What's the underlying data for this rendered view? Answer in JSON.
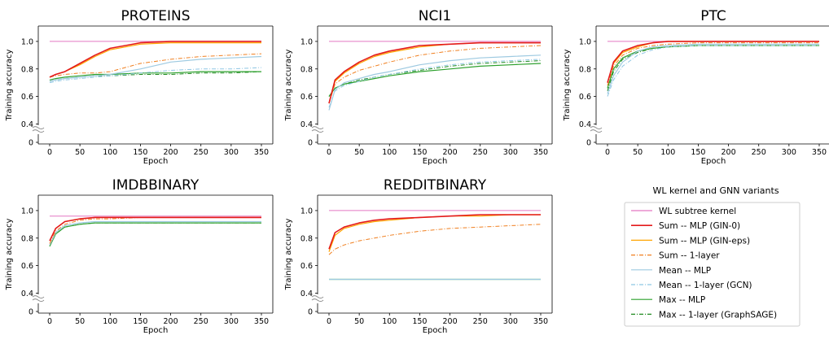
{
  "legend": {
    "title": "WL kernel and GNN variants",
    "entries": [
      {
        "key": "wl",
        "label": "WL subtree kernel",
        "color": "#e377c2",
        "dash": "solid",
        "width": 1
      },
      {
        "key": "sum_mlp",
        "label": "Sum -- MLP (GIN-0)",
        "color": "#e31a1c",
        "dash": "solid",
        "width": 1.6
      },
      {
        "key": "sum_eps",
        "label": "Sum -- MLP (GIN-eps)",
        "color": "#ffa500",
        "dash": "solid",
        "width": 1.2
      },
      {
        "key": "sum_1l",
        "label": "Sum -- 1-layer",
        "color": "#f07f1f",
        "dash": "dashdot",
        "width": 1
      },
      {
        "key": "mean_mlp",
        "label": "Mean -- MLP",
        "color": "#9ecae1",
        "dash": "solid",
        "width": 1.2
      },
      {
        "key": "mean_1l",
        "label": "Mean -- 1-layer (GCN)",
        "color": "#8ec6e3",
        "dash": "dashdot",
        "width": 1
      },
      {
        "key": "max_mlp",
        "label": "Max -- MLP",
        "color": "#2ca02c",
        "dash": "solid",
        "width": 1.2
      },
      {
        "key": "max_1l",
        "label": "Max -- 1-layer (GraphSAGE)",
        "color": "#208a20",
        "dash": "dashdot",
        "width": 1
      }
    ]
  },
  "chart_data": [
    {
      "type": "line",
      "title": "PROTEINS",
      "xlabel": "Epoch",
      "ylabel": "Training accuracy",
      "xlim": [
        0,
        350
      ],
      "ylim": [
        0,
        1.1
      ],
      "y_axis_break": "between 0 and 0.4",
      "xticks": [
        0,
        50,
        100,
        150,
        200,
        250,
        300,
        350
      ],
      "yticks": [
        0,
        0.4,
        0.6,
        0.8,
        1.0
      ],
      "x": [
        0,
        10,
        25,
        50,
        75,
        100,
        150,
        200,
        250,
        300,
        350
      ],
      "series": [
        {
          "name": "WL subtree kernel",
          "key": "wl",
          "values": [
            1.0,
            1.0,
            1.0,
            1.0,
            1.0,
            1.0,
            1.0,
            1.0,
            1.0,
            1.0,
            1.0
          ]
        },
        {
          "name": "Sum -- MLP (GIN-0)",
          "key": "sum_mlp",
          "values": [
            0.74,
            0.76,
            0.78,
            0.84,
            0.9,
            0.95,
            0.99,
            1.0,
            1.0,
            1.0,
            1.0
          ]
        },
        {
          "name": "Sum -- MLP (GIN-eps)",
          "key": "sum_eps",
          "values": [
            0.74,
            0.76,
            0.78,
            0.83,
            0.89,
            0.94,
            0.98,
            0.99,
            0.99,
            0.99,
            0.99
          ]
        },
        {
          "name": "Sum -- 1-layer",
          "key": "sum_1l",
          "values": [
            0.74,
            0.75,
            0.76,
            0.77,
            0.77,
            0.78,
            0.84,
            0.87,
            0.89,
            0.9,
            0.91
          ]
        },
        {
          "name": "Mean -- MLP",
          "key": "mean_mlp",
          "values": [
            0.71,
            0.72,
            0.73,
            0.74,
            0.75,
            0.76,
            0.8,
            0.85,
            0.87,
            0.88,
            0.89
          ]
        },
        {
          "name": "Mean -- 1-layer (GCN)",
          "key": "mean_1l",
          "values": [
            0.7,
            0.71,
            0.72,
            0.73,
            0.74,
            0.75,
            0.77,
            0.79,
            0.8,
            0.8,
            0.81
          ]
        },
        {
          "name": "Max -- MLP",
          "key": "max_mlp",
          "values": [
            0.72,
            0.73,
            0.74,
            0.75,
            0.76,
            0.76,
            0.77,
            0.77,
            0.78,
            0.78,
            0.78
          ]
        },
        {
          "name": "Max -- 1-layer (GraphSAGE)",
          "key": "max_1l",
          "values": [
            0.71,
            0.72,
            0.73,
            0.74,
            0.75,
            0.75,
            0.76,
            0.76,
            0.77,
            0.77,
            0.78
          ]
        }
      ]
    },
    {
      "type": "line",
      "title": "NCI1",
      "xlabel": "Epoch",
      "ylabel": "Training accuracy",
      "xlim": [
        0,
        350
      ],
      "ylim": [
        0,
        1.1
      ],
      "y_axis_break": "between 0 and 0.4",
      "xticks": [
        0,
        50,
        100,
        150,
        200,
        250,
        300,
        350
      ],
      "yticks": [
        0,
        0.4,
        0.6,
        0.8,
        1.0
      ],
      "x": [
        0,
        10,
        25,
        50,
        75,
        100,
        150,
        200,
        250,
        300,
        350
      ],
      "series": [
        {
          "name": "WL subtree kernel",
          "key": "wl",
          "values": [
            1.0,
            1.0,
            1.0,
            1.0,
            1.0,
            1.0,
            1.0,
            1.0,
            1.0,
            1.0,
            1.0
          ]
        },
        {
          "name": "Sum -- MLP (GIN-0)",
          "key": "sum_mlp",
          "values": [
            0.55,
            0.72,
            0.78,
            0.85,
            0.9,
            0.93,
            0.97,
            0.98,
            0.99,
            0.99,
            0.99
          ]
        },
        {
          "name": "Sum -- MLP (GIN-eps)",
          "key": "sum_eps",
          "values": [
            0.55,
            0.71,
            0.77,
            0.84,
            0.89,
            0.92,
            0.96,
            0.98,
            0.99,
            0.99,
            0.99
          ]
        },
        {
          "name": "Sum -- 1-layer",
          "key": "sum_1l",
          "values": [
            0.55,
            0.69,
            0.74,
            0.79,
            0.82,
            0.85,
            0.9,
            0.93,
            0.95,
            0.96,
            0.97
          ]
        },
        {
          "name": "Mean -- MLP",
          "key": "mean_mlp",
          "values": [
            0.5,
            0.65,
            0.7,
            0.73,
            0.76,
            0.78,
            0.83,
            0.86,
            0.88,
            0.89,
            0.9
          ]
        },
        {
          "name": "Mean -- 1-layer (GCN)",
          "key": "mean_1l",
          "values": [
            0.52,
            0.64,
            0.68,
            0.71,
            0.74,
            0.76,
            0.8,
            0.83,
            0.85,
            0.86,
            0.87
          ]
        },
        {
          "name": "Max -- MLP",
          "key": "max_mlp",
          "values": [
            0.6,
            0.66,
            0.69,
            0.71,
            0.73,
            0.75,
            0.78,
            0.8,
            0.82,
            0.83,
            0.84
          ]
        },
        {
          "name": "Max -- 1-layer (GraphSAGE)",
          "key": "max_1l",
          "values": [
            0.6,
            0.66,
            0.69,
            0.72,
            0.74,
            0.76,
            0.79,
            0.82,
            0.84,
            0.85,
            0.86
          ]
        }
      ]
    },
    {
      "type": "line",
      "title": "PTC",
      "xlabel": "Epoch",
      "ylabel": "Training accuracy",
      "xlim": [
        0,
        350
      ],
      "ylim": [
        0,
        1.1
      ],
      "y_axis_break": "between 0 and 0.4",
      "xticks": [
        0,
        50,
        100,
        150,
        200,
        250,
        300,
        350
      ],
      "yticks": [
        0,
        0.4,
        0.6,
        0.8,
        1.0
      ],
      "x": [
        0,
        10,
        25,
        50,
        75,
        100,
        150,
        200,
        250,
        300,
        350
      ],
      "series": [
        {
          "name": "WL subtree kernel",
          "key": "wl",
          "values": [
            1.0,
            1.0,
            1.0,
            1.0,
            1.0,
            1.0,
            1.0,
            1.0,
            1.0,
            1.0,
            1.0
          ]
        },
        {
          "name": "Sum -- MLP (GIN-0)",
          "key": "sum_mlp",
          "values": [
            0.7,
            0.85,
            0.93,
            0.97,
            0.99,
            1.0,
            1.0,
            1.0,
            1.0,
            1.0,
            1.0
          ]
        },
        {
          "name": "Sum -- MLP (GIN-eps)",
          "key": "sum_eps",
          "values": [
            0.7,
            0.84,
            0.92,
            0.96,
            0.99,
            1.0,
            1.0,
            1.0,
            1.0,
            1.0,
            1.0
          ]
        },
        {
          "name": "Sum -- 1-layer",
          "key": "sum_1l",
          "values": [
            0.68,
            0.82,
            0.9,
            0.95,
            0.97,
            0.98,
            0.99,
            0.99,
            0.99,
            0.99,
            0.99
          ]
        },
        {
          "name": "Mean -- MLP",
          "key": "mean_mlp",
          "values": [
            0.62,
            0.75,
            0.85,
            0.93,
            0.96,
            0.97,
            0.98,
            0.98,
            0.98,
            0.98,
            0.98
          ]
        },
        {
          "name": "Mean -- 1-layer (GCN)",
          "key": "mean_1l",
          "values": [
            0.6,
            0.72,
            0.82,
            0.9,
            0.94,
            0.96,
            0.97,
            0.97,
            0.97,
            0.97,
            0.97
          ]
        },
        {
          "name": "Max -- MLP",
          "key": "max_mlp",
          "values": [
            0.66,
            0.8,
            0.88,
            0.93,
            0.95,
            0.96,
            0.97,
            0.97,
            0.97,
            0.97,
            0.97
          ]
        },
        {
          "name": "Max -- 1-layer (GraphSAGE)",
          "key": "max_1l",
          "values": [
            0.64,
            0.78,
            0.87,
            0.92,
            0.95,
            0.96,
            0.97,
            0.97,
            0.97,
            0.97,
            0.97
          ]
        }
      ]
    },
    {
      "type": "line",
      "title": "IMDBBINARY",
      "xlabel": "Epoch",
      "ylabel": "Training accuracy",
      "xlim": [
        0,
        350
      ],
      "ylim": [
        0,
        1.1
      ],
      "y_axis_break": "between 0 and 0.4",
      "xticks": [
        0,
        50,
        100,
        150,
        200,
        250,
        300,
        350
      ],
      "yticks": [
        0,
        0.4,
        0.6,
        0.8,
        1.0
      ],
      "x": [
        0,
        10,
        25,
        50,
        75,
        100,
        150,
        200,
        250,
        300,
        350
      ],
      "series": [
        {
          "name": "WL subtree kernel",
          "key": "wl",
          "values": [
            0.96,
            0.96,
            0.96,
            0.96,
            0.96,
            0.96,
            0.96,
            0.96,
            0.96,
            0.96,
            0.96
          ]
        },
        {
          "name": "Sum -- MLP (GIN-0)",
          "key": "sum_mlp",
          "values": [
            0.78,
            0.87,
            0.92,
            0.94,
            0.95,
            0.95,
            0.95,
            0.95,
            0.95,
            0.95,
            0.95
          ]
        },
        {
          "name": "Sum -- MLP (GIN-eps)",
          "key": "sum_eps",
          "values": [
            0.78,
            0.87,
            0.92,
            0.94,
            0.95,
            0.95,
            0.95,
            0.95,
            0.95,
            0.95,
            0.95
          ]
        },
        {
          "name": "Sum -- 1-layer",
          "key": "sum_1l",
          "values": [
            0.76,
            0.85,
            0.9,
            0.93,
            0.94,
            0.94,
            0.95,
            0.95,
            0.95,
            0.95,
            0.95
          ]
        },
        {
          "name": "Mean -- MLP",
          "key": "mean_mlp",
          "values": [
            0.75,
            0.84,
            0.89,
            0.91,
            0.92,
            0.92,
            0.92,
            0.92,
            0.92,
            0.92,
            0.92
          ]
        },
        {
          "name": "Mean -- 1-layer (GCN)",
          "key": "mean_1l",
          "values": [
            0.75,
            0.84,
            0.89,
            0.91,
            0.92,
            0.92,
            0.92,
            0.92,
            0.92,
            0.92,
            0.92
          ]
        },
        {
          "name": "Max -- MLP",
          "key": "max_mlp",
          "values": [
            0.74,
            0.83,
            0.88,
            0.9,
            0.91,
            0.91,
            0.91,
            0.91,
            0.91,
            0.91,
            0.91
          ]
        },
        {
          "name": "Max -- 1-layer (GraphSAGE)",
          "key": "max_1l",
          "values": [
            0.74,
            0.83,
            0.88,
            0.9,
            0.91,
            0.91,
            0.91,
            0.91,
            0.91,
            0.91,
            0.91
          ]
        }
      ]
    },
    {
      "type": "line",
      "title": "REDDITBINARY",
      "xlabel": "Epoch",
      "ylabel": "Training accuracy",
      "xlim": [
        0,
        350
      ],
      "ylim": [
        0,
        1.1
      ],
      "y_axis_break": "between 0 and 0.4",
      "xticks": [
        0,
        50,
        100,
        150,
        200,
        250,
        300,
        350
      ],
      "yticks": [
        0,
        0.4,
        0.6,
        0.8,
        1.0
      ],
      "x": [
        0,
        10,
        25,
        50,
        75,
        100,
        150,
        200,
        250,
        300,
        350
      ],
      "series": [
        {
          "name": "WL subtree kernel",
          "key": "wl",
          "values": [
            1.0,
            1.0,
            1.0,
            1.0,
            1.0,
            1.0,
            1.0,
            1.0,
            1.0,
            1.0,
            1.0
          ]
        },
        {
          "name": "Sum -- MLP (GIN-0)",
          "key": "sum_mlp",
          "values": [
            0.72,
            0.84,
            0.88,
            0.91,
            0.93,
            0.94,
            0.95,
            0.96,
            0.97,
            0.97,
            0.97
          ]
        },
        {
          "name": "Sum -- MLP (GIN-eps)",
          "key": "sum_eps",
          "values": [
            0.7,
            0.82,
            0.87,
            0.9,
            0.92,
            0.93,
            0.95,
            0.96,
            0.96,
            0.97,
            0.97
          ]
        },
        {
          "name": "Sum -- 1-layer",
          "key": "sum_1l",
          "values": [
            0.68,
            0.72,
            0.75,
            0.78,
            0.8,
            0.82,
            0.85,
            0.87,
            0.88,
            0.89,
            0.9
          ]
        },
        {
          "name": "Mean -- MLP",
          "key": "mean_mlp",
          "values": [
            0.5,
            0.5,
            0.5,
            0.5,
            0.5,
            0.5,
            0.5,
            0.5,
            0.5,
            0.5,
            0.5
          ]
        },
        {
          "name": "Mean -- 1-layer (GCN)",
          "key": "mean_1l",
          "values": [
            0.5,
            0.5,
            0.5,
            0.5,
            0.5,
            0.5,
            0.5,
            0.5,
            0.5,
            0.5,
            0.5
          ]
        },
        {
          "name": "Max -- MLP",
          "key": "max_mlp",
          "values": [
            0.5,
            0.5,
            0.5,
            0.5,
            0.5,
            0.5,
            0.5,
            0.5,
            0.5,
            0.5,
            0.5
          ]
        },
        {
          "name": "Max -- 1-layer (GraphSAGE)",
          "key": "max_1l",
          "values": [
            0.5,
            0.5,
            0.5,
            0.5,
            0.5,
            0.5,
            0.5,
            0.5,
            0.5,
            0.5,
            0.5
          ]
        }
      ]
    }
  ]
}
